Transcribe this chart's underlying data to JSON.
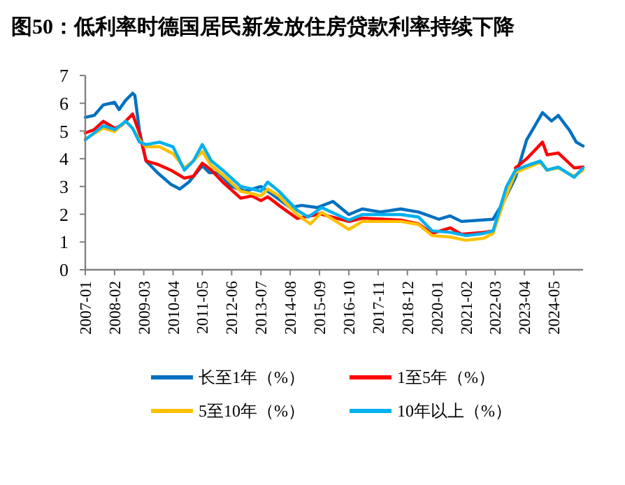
{
  "chart_data": {
    "type": "line",
    "title": "图50：低利率时德国居民新发放住房贷款利率持续下降",
    "xlim": [
      "2007-01",
      "2025-06"
    ],
    "ylim": [
      0,
      7
    ],
    "yticks": [
      0,
      1,
      2,
      3,
      4,
      5,
      6,
      7
    ],
    "xticks": [
      "2007-01",
      "2008-02",
      "2009-03",
      "2010-04",
      "2011-05",
      "2012-06",
      "2013-07",
      "2014-08",
      "2015-09",
      "2016-10",
      "2017-11",
      "2018-12",
      "2020-01",
      "2021-02",
      "2022-03",
      "2023-04",
      "2024-05"
    ],
    "grid": false,
    "legend": "bottom",
    "marker": "none",
    "line_style": "solid",
    "series": [
      {
        "name": "长至1年（%）",
        "color": "#0070c0",
        "x": [
          "2007-01",
          "2007-05",
          "2007-09",
          "2008-02",
          "2008-04",
          "2008-07",
          "2008-10",
          "2008-11",
          "2009-01",
          "2009-04",
          "2009-09",
          "2010-03",
          "2010-07",
          "2010-11",
          "2011-05",
          "2011-08",
          "2011-12",
          "2012-06",
          "2012-12",
          "2013-07",
          "2014-01",
          "2014-08",
          "2015-01",
          "2015-08",
          "2016-03",
          "2016-10",
          "2017-04",
          "2017-12",
          "2018-09",
          "2019-05",
          "2020-02",
          "2020-07",
          "2020-12",
          "2022-02",
          "2022-07",
          "2022-12",
          "2023-05",
          "2023-12",
          "2024-04",
          "2024-07",
          "2024-12",
          "2025-03",
          "2025-06"
        ],
        "values": [
          5.49,
          5.56,
          5.94,
          6.03,
          5.77,
          6.11,
          6.36,
          6.28,
          5.02,
          3.92,
          3.5,
          3.08,
          2.91,
          3.16,
          3.75,
          3.5,
          3.5,
          3.0,
          2.83,
          3.0,
          2.66,
          2.24,
          2.32,
          2.24,
          2.46,
          1.99,
          2.19,
          2.08,
          2.19,
          2.08,
          1.82,
          1.94,
          1.74,
          1.82,
          2.49,
          3.33,
          4.68,
          5.66,
          5.36,
          5.56,
          5.02,
          4.6,
          4.46
        ]
      },
      {
        "name": "1至5年（%）",
        "color": "#ff0000",
        "x": [
          "2007-01",
          "2007-05",
          "2007-09",
          "2008-02",
          "2008-05",
          "2008-10",
          "2009-01",
          "2009-04",
          "2009-09",
          "2010-03",
          "2010-09",
          "2011-01",
          "2011-05",
          "2011-09",
          "2012-02",
          "2012-10",
          "2013-03",
          "2013-07",
          "2013-10",
          "2014-03",
          "2014-11",
          "2015-08",
          "2015-09",
          "2016-10",
          "2017-04",
          "2018-09",
          "2019-05",
          "2019-11",
          "2020-07",
          "2020-12",
          "2021-10",
          "2022-02",
          "2022-07",
          "2022-12",
          "2023-05",
          "2023-09",
          "2023-12",
          "2024-02",
          "2024-07",
          "2025-02",
          "2025-06"
        ],
        "values": [
          4.93,
          5.05,
          5.35,
          5.1,
          5.19,
          5.61,
          4.93,
          3.92,
          3.8,
          3.59,
          3.3,
          3.37,
          3.84,
          3.59,
          3.16,
          2.58,
          2.66,
          2.49,
          2.63,
          2.32,
          1.85,
          1.99,
          2.02,
          1.74,
          1.86,
          1.79,
          1.65,
          1.31,
          1.51,
          1.28,
          1.35,
          1.4,
          null,
          3.67,
          4.0,
          4.34,
          4.6,
          4.14,
          4.21,
          3.67,
          3.7
        ]
      },
      {
        "name": "5至10年（%）",
        "color": "#ffc000",
        "x": [
          "2007-01",
          "2007-09",
          "2008-02",
          "2008-07",
          "2008-10",
          "2009-01",
          "2009-04",
          "2009-10",
          "2010-04",
          "2010-09",
          "2011-01",
          "2011-05",
          "2011-09",
          "2012-02",
          "2012-10",
          "2013-03",
          "2013-07",
          "2013-10",
          "2014-03",
          "2014-11",
          "2015-05",
          "2015-10",
          "2016-10",
          "2017-04",
          "2018-09",
          "2019-05",
          "2019-11",
          "2020-07",
          "2021-02",
          "2021-10",
          "2022-02",
          "2022-07",
          "2022-12",
          "2023-05",
          "2023-11",
          "2024-02",
          "2024-07",
          "2025-02",
          "2025-06"
        ],
        "values": [
          4.71,
          5.1,
          4.98,
          5.35,
          5.1,
          4.68,
          4.43,
          4.43,
          4.18,
          3.67,
          3.92,
          4.26,
          3.75,
          3.42,
          2.83,
          2.74,
          2.66,
          2.91,
          2.66,
          1.99,
          1.65,
          2.07,
          1.45,
          1.74,
          1.74,
          1.63,
          1.23,
          1.18,
          1.06,
          1.14,
          1.31,
          2.49,
          3.5,
          3.67,
          3.87,
          3.59,
          3.67,
          3.37,
          3.59
        ]
      },
      {
        "name": "10年以上（%）",
        "color": "#00b0f0",
        "x": [
          "2007-01",
          "2007-09",
          "2008-02",
          "2008-07",
          "2008-10",
          "2009-01",
          "2009-04",
          "2009-10",
          "2010-04",
          "2010-09",
          "2011-01",
          "2011-05",
          "2011-09",
          "2012-02",
          "2012-10",
          "2013-03",
          "2013-07",
          "2013-10",
          "2014-03",
          "2014-11",
          "2015-04",
          "2015-10",
          "2016-10",
          "2017-04",
          "2018-09",
          "2019-05",
          "2019-11",
          "2020-07",
          "2021-02",
          "2021-10",
          "2022-02",
          "2022-08",
          "2022-12",
          "2023-05",
          "2023-11",
          "2024-02",
          "2024-07",
          "2025-02",
          "2025-06"
        ],
        "values": [
          4.68,
          5.19,
          5.05,
          5.35,
          5.1,
          4.6,
          4.51,
          4.6,
          4.43,
          3.59,
          3.92,
          4.51,
          3.92,
          3.59,
          3.0,
          2.91,
          2.83,
          3.16,
          2.83,
          2.15,
          1.9,
          2.24,
          1.79,
          1.99,
          1.99,
          1.9,
          1.4,
          1.35,
          1.23,
          1.31,
          1.4,
          2.99,
          3.59,
          3.75,
          3.92,
          3.59,
          3.7,
          3.33,
          3.67
        ]
      }
    ]
  }
}
